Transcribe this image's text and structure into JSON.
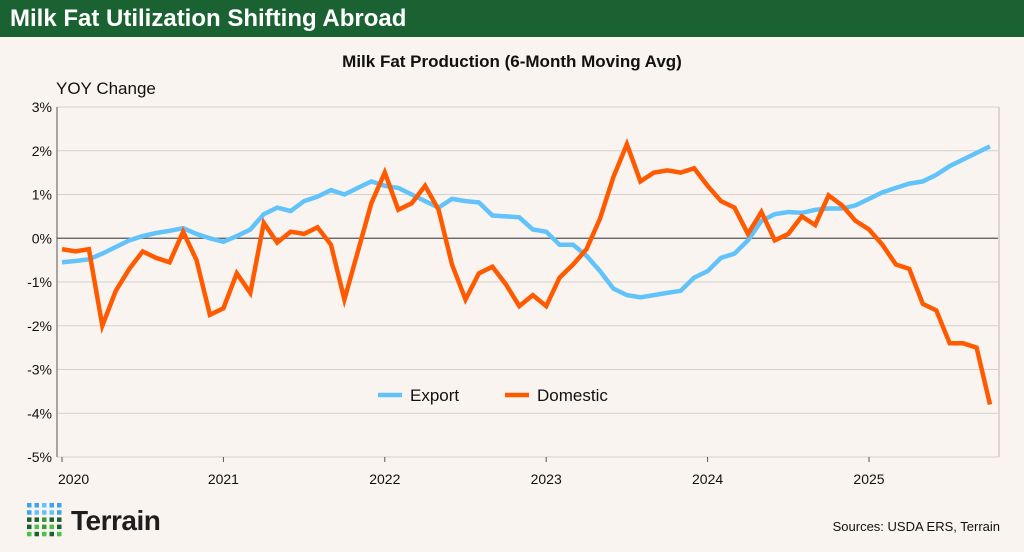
{
  "header": {
    "title": "Milk Fat Utilization Shifting Abroad"
  },
  "footer": {
    "source": "Sources: USDA ERS, Terrain",
    "logo_text": "Terrain"
  },
  "chart_data": {
    "type": "line",
    "title": "Milk Fat Production (6-Month Moving Avg)",
    "ylabel": "YOY Change",
    "xlabel": "",
    "ylim": [
      -5,
      3
    ],
    "yticks": [
      "3%",
      "2%",
      "1%",
      "0%",
      "-1%",
      "-2%",
      "-3%",
      "-4%",
      "-5%"
    ],
    "xticks": [
      "2020",
      "2021",
      "2022",
      "2023",
      "2024",
      "2025"
    ],
    "x_start": "2020-01",
    "x_end": "2025-10",
    "frequency": "monthly",
    "grid": true,
    "legend": "bottom-center",
    "series": [
      {
        "name": "Export",
        "color": "#62c3fa",
        "values": [
          -0.55,
          -0.52,
          -0.48,
          -0.35,
          -0.2,
          -0.05,
          0.05,
          0.12,
          0.17,
          0.23,
          0.1,
          0.0,
          -0.08,
          0.05,
          0.2,
          0.55,
          0.7,
          0.62,
          0.85,
          0.95,
          1.1,
          1.0,
          1.15,
          1.3,
          1.2,
          1.15,
          1.0,
          0.85,
          0.7,
          0.9,
          0.85,
          0.82,
          0.52,
          0.5,
          0.48,
          0.2,
          0.15,
          -0.15,
          -0.15,
          -0.4,
          -0.75,
          -1.15,
          -1.3,
          -1.35,
          -1.3,
          -1.25,
          -1.2,
          -0.9,
          -0.75,
          -0.45,
          -0.35,
          -0.05,
          0.4,
          0.55,
          0.6,
          0.58,
          0.65,
          0.68,
          0.68,
          0.75,
          0.9,
          1.05,
          1.15,
          1.25,
          1.3,
          1.45,
          1.65,
          1.8,
          1.95,
          2.1
        ]
      },
      {
        "name": "Domestic",
        "color": "#ff5a00",
        "values": [
          -0.25,
          -0.3,
          -0.25,
          -2.0,
          -1.2,
          -0.7,
          -0.3,
          -0.45,
          -0.55,
          0.15,
          -0.5,
          -1.75,
          -1.6,
          -0.8,
          -1.25,
          0.35,
          -0.1,
          0.15,
          0.1,
          0.25,
          -0.15,
          -1.4,
          -0.3,
          0.8,
          1.5,
          0.65,
          0.8,
          1.2,
          0.65,
          -0.6,
          -1.4,
          -0.8,
          -0.65,
          -1.05,
          -1.55,
          -1.3,
          -1.55,
          -0.9,
          -0.6,
          -0.25,
          0.45,
          1.4,
          2.15,
          1.3,
          1.5,
          1.55,
          1.5,
          1.6,
          1.2,
          0.85,
          0.7,
          0.1,
          0.6,
          -0.05,
          0.1,
          0.5,
          0.3,
          0.98,
          0.75,
          0.4,
          0.2,
          -0.15,
          -0.6,
          -0.7,
          -1.5,
          -1.65,
          -2.4,
          -2.4,
          -2.5,
          -3.8
        ]
      }
    ]
  }
}
